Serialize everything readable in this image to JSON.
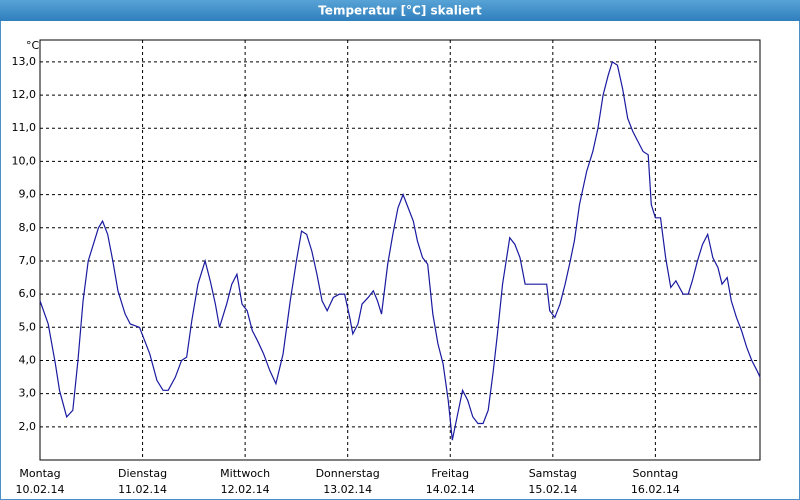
{
  "chart_data": {
    "type": "line",
    "title": "Temperatur [°C] skaliert",
    "ylabel": "°C",
    "color": "#1a1aa0",
    "grid": true,
    "xlim": [
      0,
      7.02
    ],
    "ylim": [
      1.0,
      13.66
    ],
    "yticks": [
      {
        "value": 2,
        "label": "2,0"
      },
      {
        "value": 3,
        "label": "3,0"
      },
      {
        "value": 4,
        "label": "4,0"
      },
      {
        "value": 5,
        "label": "5,0"
      },
      {
        "value": 6,
        "label": "6,0"
      },
      {
        "value": 7,
        "label": "7,0"
      },
      {
        "value": 8,
        "label": "8,0"
      },
      {
        "value": 9,
        "label": "9,0"
      },
      {
        "value": 10,
        "label": "10,0"
      },
      {
        "value": 11,
        "label": "11,0"
      },
      {
        "value": 12,
        "label": "12,0"
      },
      {
        "value": 13,
        "label": "13,0"
      }
    ],
    "xticks": [
      {
        "value": 0,
        "label": [
          "Montag",
          "10.02.14"
        ]
      },
      {
        "value": 1,
        "label": [
          "Dienstag",
          "11.02.14"
        ]
      },
      {
        "value": 2,
        "label": [
          "Mittwoch",
          "12.02.14"
        ]
      },
      {
        "value": 3,
        "label": [
          "Donnerstag",
          "13.02.14"
        ]
      },
      {
        "value": 4,
        "label": [
          "Freitag",
          "14.02.14"
        ]
      },
      {
        "value": 5,
        "label": [
          "Samstag",
          "15.02.14"
        ]
      },
      {
        "value": 6,
        "label": [
          "Sonntag",
          "16.02.14"
        ]
      }
    ],
    "x": [
      0,
      0.08,
      0.15,
      0.19,
      0.26,
      0.32,
      0.37,
      0.42,
      0.47,
      0.53,
      0.57,
      0.61,
      0.66,
      0.71,
      0.76,
      0.83,
      0.88,
      0.97,
      1.02,
      1.07,
      1.14,
      1.2,
      1.25,
      1.32,
      1.38,
      1.43,
      1.48,
      1.54,
      1.61,
      1.66,
      1.71,
      1.75,
      1.82,
      1.87,
      1.92,
      1.97,
      2.02,
      2.07,
      2.12,
      2.18,
      2.24,
      2.3,
      2.37,
      2.44,
      2.5,
      2.55,
      2.6,
      2.65,
      2.7,
      2.75,
      2.8,
      2.86,
      2.92,
      2.97,
      3.02,
      3.05,
      3.1,
      3.14,
      3.2,
      3.25,
      3.29,
      3.33,
      3.39,
      3.44,
      3.49,
      3.54,
      3.59,
      3.64,
      3.68,
      3.73,
      3.78,
      3.83,
      3.88,
      3.93,
      3.98,
      4.02,
      4.06,
      4.12,
      4.17,
      4.22,
      4.27,
      4.32,
      4.37,
      4.42,
      4.46,
      4.51,
      4.58,
      4.63,
      4.68,
      4.73,
      4.87,
      4.94,
      4.97,
      5.02,
      5.07,
      5.12,
      5.17,
      5.21,
      5.26,
      5.33,
      5.39,
      5.44,
      5.49,
      5.54,
      5.58,
      5.63,
      5.68,
      5.73,
      5.78,
      5.83,
      5.88,
      5.93,
      5.96,
      6.0,
      6.05,
      6.1,
      6.15,
      6.2,
      6.27,
      6.32,
      6.36,
      6.41,
      6.46,
      6.51,
      6.56,
      6.61,
      6.65,
      6.7,
      6.74,
      6.79,
      6.84,
      6.89,
      6.94,
      6.99,
      7.02
    ],
    "values": [
      5.8,
      5.1,
      3.9,
      3.1,
      2.3,
      2.5,
      4.0,
      5.8,
      7.0,
      7.6,
      8.0,
      8.2,
      7.8,
      7.0,
      6.1,
      5.4,
      5.1,
      5.0,
      4.6,
      4.2,
      3.4,
      3.1,
      3.1,
      3.5,
      4.0,
      4.1,
      5.2,
      6.3,
      7.0,
      6.4,
      5.7,
      5.0,
      5.7,
      6.3,
      6.6,
      5.7,
      5.5,
      4.9,
      4.6,
      4.2,
      3.7,
      3.3,
      4.2,
      5.8,
      7.0,
      7.9,
      7.8,
      7.3,
      6.6,
      5.8,
      5.5,
      5.9,
      6.0,
      6.0,
      5.3,
      4.8,
      5.1,
      5.7,
      5.9,
      6.1,
      5.8,
      5.4,
      6.9,
      7.8,
      8.6,
      9.0,
      8.6,
      8.2,
      7.6,
      7.1,
      6.9,
      5.4,
      4.5,
      3.9,
      2.8,
      1.6,
      2.2,
      3.1,
      2.8,
      2.3,
      2.1,
      2.1,
      2.5,
      3.7,
      4.8,
      6.3,
      7.7,
      7.5,
      7.1,
      6.3,
      6.3,
      6.3,
      5.5,
      5.3,
      5.7,
      6.3,
      7.0,
      7.6,
      8.7,
      9.7,
      10.3,
      11.0,
      12.0,
      12.6,
      13.0,
      12.9,
      12.2,
      11.3,
      10.9,
      10.6,
      10.3,
      10.2,
      8.7,
      8.3,
      8.3,
      7.1,
      6.2,
      6.4,
      6.0,
      6.0,
      6.4,
      7.0,
      7.5,
      7.8,
      7.1,
      6.8,
      6.3,
      6.5,
      5.8,
      5.3,
      4.9,
      4.4,
      4.0,
      3.7,
      3.5
    ]
  }
}
